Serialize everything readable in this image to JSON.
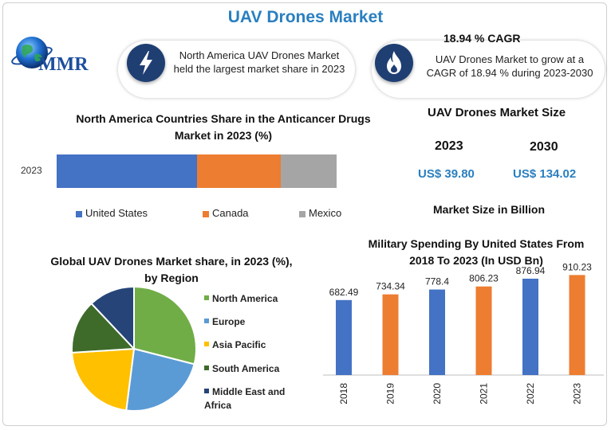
{
  "title": "UAV Drones Market",
  "logo": {
    "text": "MMR"
  },
  "highlight_left": {
    "icon": "lightning-icon",
    "text": "North America UAV Drones Market held the largest market share in 2023"
  },
  "highlight_right": {
    "icon": "flame-icon",
    "heading": "18.94 % CAGR",
    "text": "UAV Drones Market to grow at a CAGR of 18.94 % during 2023-2030"
  },
  "market_size": {
    "title": "UAV Drones Market Size",
    "year_a": "2023",
    "value_a": "US$ 39.80",
    "year_b": "2030",
    "value_b": "US$ 134.02",
    "unit": "Market Size in Billion"
  },
  "chart_data": [
    {
      "type": "bar",
      "orientation": "horizontal-stacked",
      "title": "North America Countries Share in the Anticancer Drugs Market in 2023 (%)",
      "categories": [
        "2023"
      ],
      "series": [
        {
          "name": "United States",
          "values": [
            50
          ],
          "color": "#4472c4"
        },
        {
          "name": "Canada",
          "values": [
            30
          ],
          "color": "#ed7d31"
        },
        {
          "name": "Mexico",
          "values": [
            20
          ],
          "color": "#a5a5a5"
        }
      ],
      "legend": "bottom"
    },
    {
      "type": "pie",
      "title": "Global UAV Drones Market share, in 2023 (%), by Region",
      "labels": [
        "North America",
        "Europe",
        "Asia Pacific",
        "South America",
        "Middle East and Africa"
      ],
      "values": [
        29,
        23,
        22,
        14,
        12
      ],
      "colors": [
        "#70ad47",
        "#5b9bd5",
        "#ffc000",
        "#3e6b2a",
        "#264478"
      ],
      "legend": "right"
    },
    {
      "type": "bar",
      "title": "Military Spending By United States From 2018 To 2023 (In USD Bn)",
      "categories": [
        "2018",
        "2019",
        "2020",
        "2021",
        "2022",
        "2023"
      ],
      "values": [
        682.49,
        734.34,
        778.4,
        806.23,
        876.94,
        910.23
      ],
      "value_labels": [
        "682.49",
        "734.34",
        "778.4",
        "806.23",
        "876.94",
        "910.23"
      ],
      "colors": [
        "#4472c4",
        "#ed7d31",
        "#4472c4",
        "#ed7d31",
        "#4472c4",
        "#ed7d31"
      ],
      "ylim": [
        0,
        1000
      ]
    }
  ]
}
